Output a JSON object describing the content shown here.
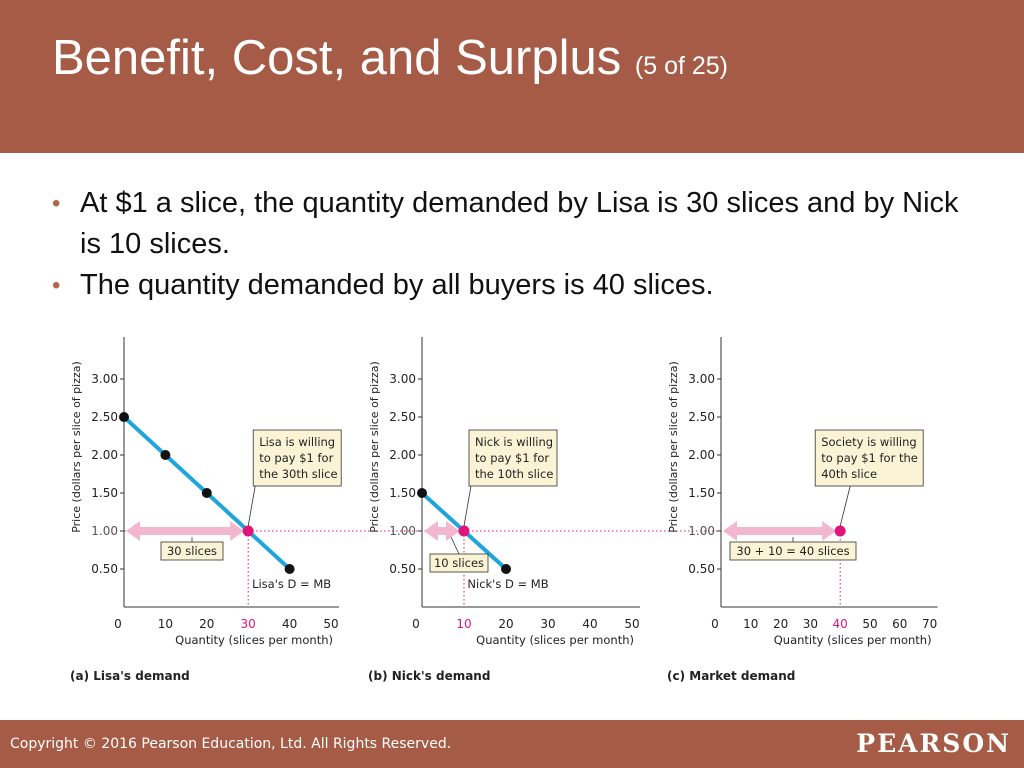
{
  "slide": {
    "title": "Benefit, Cost, and Surplus",
    "title_suffix": "(5 of 25)",
    "bullets": [
      "At $1 a slice, the quantity demanded by Lisa is 30 slices and by Nick is 10 slices.",
      "The quantity demanded by all buyers is 40 slices."
    ],
    "footer": {
      "copyright": "Copyright © 2016 Pearson Education, Ltd. All Rights Reserved.",
      "brand": "PEARSON"
    },
    "colors": {
      "header": "#a65b46",
      "curve": "#1ea6dc",
      "highlight": "#e0147a",
      "arrow": "#f2b7cf",
      "callout_fill": "#fbf3d6"
    }
  },
  "chart_data": [
    {
      "type": "line",
      "panel_label": "(a) Lisa's demand",
      "ylabel": "Price (dollars per slice of pizza)",
      "xlabel": "Quantity (slices per month)",
      "xlim": [
        0,
        50
      ],
      "ylim": [
        0,
        3.0
      ],
      "x_ticks": [
        0,
        10,
        20,
        30,
        40,
        50
      ],
      "y_ticks": [
        "0.50",
        "1.00",
        "1.50",
        "2.00",
        "2.50",
        "3.00"
      ],
      "series": [
        {
          "name": "Lisa's D = MB",
          "x": [
            0,
            10,
            20,
            30,
            40
          ],
          "y": [
            2.5,
            2.0,
            1.5,
            1.0,
            0.5
          ]
        }
      ],
      "highlight": {
        "x": 30,
        "y": 1.0
      },
      "callout": [
        "Lisa is willing",
        "to pay $1 for",
        "the 30th slice"
      ],
      "quantity_label": "30 slices"
    },
    {
      "type": "line",
      "panel_label": "(b) Nick's demand",
      "ylabel": "Price (dollars per slice of pizza)",
      "xlabel": "Quantity (slices per month)",
      "xlim": [
        0,
        50
      ],
      "ylim": [
        0,
        3.0
      ],
      "x_ticks": [
        0,
        10,
        20,
        30,
        40,
        50
      ],
      "y_ticks": [
        "0.50",
        "1.00",
        "1.50",
        "2.00",
        "2.50",
        "3.00"
      ],
      "series": [
        {
          "name": "Nick's D = MB",
          "x": [
            0,
            10,
            20
          ],
          "y": [
            1.5,
            1.0,
            0.5
          ]
        }
      ],
      "highlight": {
        "x": 10,
        "y": 1.0
      },
      "callout": [
        "Nick is willing",
        "to pay $1 for",
        "the 10th slice"
      ],
      "quantity_label": "10 slices"
    },
    {
      "type": "scatter",
      "panel_label": "(c) Market demand",
      "ylabel": "Price (dollars per slice of pizza)",
      "xlabel": "Quantity (slices per month)",
      "xlim": [
        0,
        70
      ],
      "ylim": [
        0,
        3.0
      ],
      "x_ticks": [
        0,
        10,
        20,
        30,
        40,
        50,
        60,
        70
      ],
      "y_ticks": [
        "0.50",
        "1.00",
        "1.50",
        "2.00",
        "2.50",
        "3.00"
      ],
      "series": [],
      "highlight": {
        "x": 40,
        "y": 1.0
      },
      "callout": [
        "Society is willing",
        "to pay $1 for the",
        "40th slice"
      ],
      "quantity_label": "30 + 10 = 40 slices"
    }
  ]
}
